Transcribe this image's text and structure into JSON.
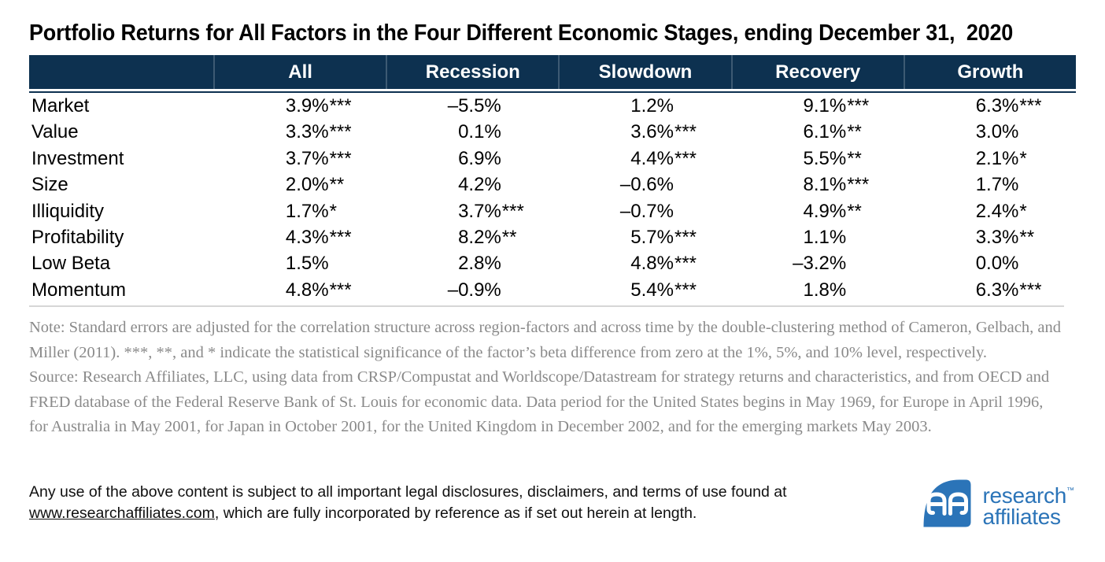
{
  "title": "Portfolio Returns for All Factors in the Four Different Economic Stages, ending December 31,  2020",
  "table": {
    "columns": [
      "",
      "All",
      "Recession",
      "Slowdown",
      "Recovery",
      "Growth"
    ],
    "rows": [
      {
        "label": "Market",
        "cells": [
          {
            "v": "3.9%",
            "s": "***"
          },
          {
            "v": "–5.5%",
            "s": ""
          },
          {
            "v": "1.2%",
            "s": ""
          },
          {
            "v": "9.1%",
            "s": "***"
          },
          {
            "v": "6.3%",
            "s": "***"
          }
        ]
      },
      {
        "label": "Value",
        "cells": [
          {
            "v": "3.3%",
            "s": "***"
          },
          {
            "v": "0.1%",
            "s": ""
          },
          {
            "v": "3.6%",
            "s": "***"
          },
          {
            "v": "6.1%",
            "s": "**"
          },
          {
            "v": "3.0%",
            "s": ""
          }
        ]
      },
      {
        "label": "Investment",
        "cells": [
          {
            "v": "3.7%",
            "s": "***"
          },
          {
            "v": "6.9%",
            "s": ""
          },
          {
            "v": "4.4%",
            "s": "***"
          },
          {
            "v": "5.5%",
            "s": "**"
          },
          {
            "v": "2.1%",
            "s": "*"
          }
        ]
      },
      {
        "label": "Size",
        "cells": [
          {
            "v": "2.0%",
            "s": "**"
          },
          {
            "v": "4.2%",
            "s": ""
          },
          {
            "v": "–0.6%",
            "s": ""
          },
          {
            "v": "8.1%",
            "s": "***"
          },
          {
            "v": "1.7%",
            "s": ""
          }
        ]
      },
      {
        "label": "Illiquidity",
        "cells": [
          {
            "v": "1.7%",
            "s": "*"
          },
          {
            "v": "3.7%",
            "s": "***"
          },
          {
            "v": "–0.7%",
            "s": ""
          },
          {
            "v": "4.9%",
            "s": "**"
          },
          {
            "v": "2.4%",
            "s": "*"
          }
        ]
      },
      {
        "label": "Profitability",
        "cells": [
          {
            "v": "4.3%",
            "s": "***"
          },
          {
            "v": "8.2%",
            "s": "**"
          },
          {
            "v": "5.7%",
            "s": "***"
          },
          {
            "v": "1.1%",
            "s": ""
          },
          {
            "v": "3.3%",
            "s": "**"
          }
        ]
      },
      {
        "label": "Low Beta",
        "cells": [
          {
            "v": "1.5%",
            "s": ""
          },
          {
            "v": "2.8%",
            "s": ""
          },
          {
            "v": "4.8%",
            "s": "***"
          },
          {
            "v": "–3.2%",
            "s": ""
          },
          {
            "v": "0.0%",
            "s": ""
          }
        ]
      },
      {
        "label": "Momentum",
        "cells": [
          {
            "v": "4.8%",
            "s": "***"
          },
          {
            "v": "–0.9%",
            "s": ""
          },
          {
            "v": "5.4%",
            "s": "***"
          },
          {
            "v": "1.8%",
            "s": ""
          },
          {
            "v": "6.3%",
            "s": "***"
          }
        ]
      }
    ]
  },
  "note": "Note: Standard errors are adjusted for the correlation structure across region-factors and across time by the double-clustering method of Cameron, Gelbach, and Miller (2011). ***, **, and * indicate the statistical significance of the factor’s beta difference from zero at the 1%, 5%, and 10% level, respectively.",
  "source": "Source: Research Affiliates, LLC, using data from CRSP/Compustat and Worldscope/Datastream for strategy returns and characteristics, and from OECD and FRED database of the Federal Reserve Bank of St. Louis for economic data. Data period for the United States begins in May 1969, for Europe in April 1996, for Australia in May 2001, for Japan in October 2001, for the United Kingdom in December 2002, and for the emerging markets May 2003.",
  "footer": {
    "line1": "Any use of the above content is subject to all important legal disclosures, disclaimers, and terms of use found at",
    "link": "www.researchaffiliates.com",
    "line2_rest": ", which are fully incorporated by reference as if set out herein at length."
  },
  "logo": {
    "word1": "research",
    "tm": "™",
    "word2": "affiliates"
  },
  "colors": {
    "header_bg": "#0d3150",
    "header_text": "#ffffff",
    "logo_blue": "#2b74b8",
    "note_gray": "#8a8a8a",
    "rule_gray": "#d6d6d6",
    "text_black": "#101010"
  },
  "chart_data": {
    "type": "table",
    "title": "Portfolio Returns for All Factors in the Four Different Economic Stages, ending December 31, 2020",
    "columns": [
      "All",
      "Recession",
      "Slowdown",
      "Recovery",
      "Growth"
    ],
    "row_labels": [
      "Market",
      "Value",
      "Investment",
      "Size",
      "Illiquidity",
      "Profitability",
      "Low Beta",
      "Momentum"
    ],
    "values": [
      [
        "3.9%***",
        "–5.5%",
        "1.2%",
        "9.1%***",
        "6.3%***"
      ],
      [
        "3.3%***",
        "0.1%",
        "3.6%***",
        "6.1%**",
        "3.0%"
      ],
      [
        "3.7%***",
        "6.9%",
        "4.4%***",
        "5.5%**",
        "2.1%*"
      ],
      [
        "2.0%**",
        "4.2%",
        "–0.6%",
        "8.1%***",
        "1.7%"
      ],
      [
        "1.7%*",
        "3.7%***",
        "–0.7%",
        "4.9%**",
        "2.4%*"
      ],
      [
        "4.3%***",
        "8.2%**",
        "5.7%***",
        "1.1%",
        "3.3%**"
      ],
      [
        "1.5%",
        "2.8%",
        "4.8%***",
        "–3.2%",
        "0.0%"
      ],
      [
        "4.8%***",
        "–0.9%",
        "5.4%***",
        "1.8%",
        "6.3%***"
      ]
    ],
    "significance_legend": "***, **, * = significance at the 1%, 5%, 10% level"
  }
}
